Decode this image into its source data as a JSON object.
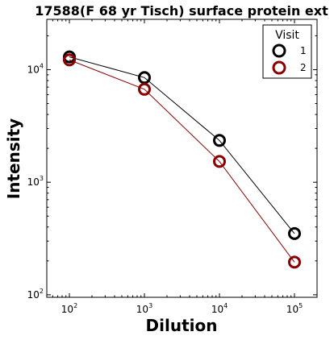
{
  "chart_data": {
    "type": "line",
    "title": "17588(F 68 yr Tisch) surface protein ext",
    "xlabel": "Dilution",
    "ylabel": "Intensity",
    "xscale": "log",
    "yscale": "log",
    "xlim": [
      50,
      200000
    ],
    "ylim": [
      95,
      28000
    ],
    "x": [
      100,
      1000,
      10000,
      100000
    ],
    "x_ticks": [
      {
        "value": 100,
        "base": "10",
        "exp": "2"
      },
      {
        "value": 1000,
        "base": "10",
        "exp": "3"
      },
      {
        "value": 10000,
        "base": "10",
        "exp": "4"
      },
      {
        "value": 100000,
        "base": "10",
        "exp": "5"
      }
    ],
    "y_ticks": [
      {
        "value": 100,
        "base": "10",
        "exp": "2"
      },
      {
        "value": 1000,
        "base": "10",
        "exp": "3"
      },
      {
        "value": 10000,
        "base": "10",
        "exp": "4"
      }
    ],
    "grid": false,
    "legend": {
      "title": "Visit",
      "placement": "top-right"
    },
    "series": [
      {
        "name": "1",
        "values": [
          13000,
          8500,
          2350,
          350
        ],
        "color": "#000000"
      },
      {
        "name": "2",
        "values": [
          12200,
          6700,
          1530,
          195
        ],
        "color": "#8b0000"
      }
    ]
  }
}
